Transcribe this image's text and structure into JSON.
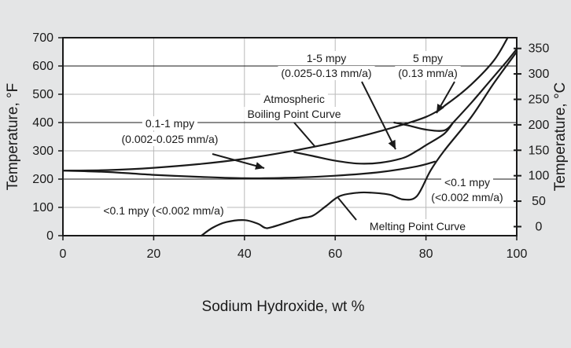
{
  "chart_data": {
    "type": "line",
    "title": "",
    "xlabel": "Sodium Hydroxide, wt %",
    "ylabel_left": "Temperature, °F",
    "ylabel_right": "Temperature, °C",
    "xlim": [
      0,
      100
    ],
    "ylim_f": [
      0,
      700
    ],
    "x_ticks": [
      "0",
      "20",
      "40",
      "60",
      "80",
      "100"
    ],
    "y_ticks_f": [
      "0",
      "100",
      "200",
      "300",
      "400",
      "500",
      "600",
      "700"
    ],
    "y_ticks_c": [
      "0",
      "50",
      "100",
      "150",
      "200",
      "250",
      "300",
      "350"
    ],
    "grid": true,
    "colors": {
      "background": "#e4e5e6",
      "plot": "#ffffff",
      "line": "#1a1a1a",
      "grid": "#b9b9b9"
    },
    "series": [
      {
        "label": "Atmospheric Boiling Point Curve",
        "x": [
          0,
          10,
          20,
          30,
          40,
          50,
          60,
          70,
          80,
          85,
          90,
          95,
          98
        ],
        "y": [
          230,
          232,
          240,
          253,
          272,
          298,
          330,
          370,
          420,
          470,
          535,
          620,
          700
        ]
      },
      {
        "label": "",
        "x": [
          0,
          10,
          20,
          30,
          40,
          50,
          60,
          70,
          78,
          82
        ],
        "y": [
          230,
          225,
          215,
          208,
          203,
          205,
          212,
          225,
          245,
          262
        ]
      },
      {
        "label": "",
        "x": [
          51,
          55,
          60,
          65,
          70,
          75,
          78,
          80,
          84,
          86
        ],
        "y": [
          295,
          282,
          265,
          255,
          258,
          275,
          300,
          320,
          360,
          400
        ]
      },
      {
        "label": "",
        "x": [
          73,
          76,
          80,
          84,
          86
        ],
        "y": [
          400,
          390,
          375,
          372,
          400
        ]
      },
      {
        "label": "Melting Point Curve",
        "x": [
          30.5,
          33,
          36,
          40,
          43,
          44.5,
          46,
          52,
          55,
          58,
          61,
          65,
          68,
          72,
          75,
          78,
          81,
          84,
          90,
          95,
          100
        ],
        "y": [
          0,
          28,
          48,
          55,
          42,
          28,
          30,
          60,
          70,
          105,
          140,
          152,
          152,
          145,
          128,
          140,
          230,
          300,
          420,
          540,
          650
        ]
      },
      {
        "label": "",
        "x": [
          86,
          90,
          94,
          98,
          100
        ],
        "y": [
          400,
          470,
          545,
          620,
          660
        ]
      }
    ],
    "annotations": [
      {
        "text": "0.1-1 mpy",
        "sub": "(0.002-0.025 mm/a)"
      },
      {
        "text": "Atmospheric",
        "sub": "Boiling Point Curve"
      },
      {
        "text": "1-5 mpy",
        "sub": "(0.025-0.13 mm/a)"
      },
      {
        "text": "5 mpy",
        "sub": "(0.13 mm/a)"
      },
      {
        "text": "<0.1 mpy",
        "sub": "(<0.002 mm/a)"
      },
      {
        "text": "<0.1 mpy (<0.002 mm/a)",
        "sub": ""
      },
      {
        "text": "Melting Point Curve",
        "sub": ""
      }
    ]
  }
}
